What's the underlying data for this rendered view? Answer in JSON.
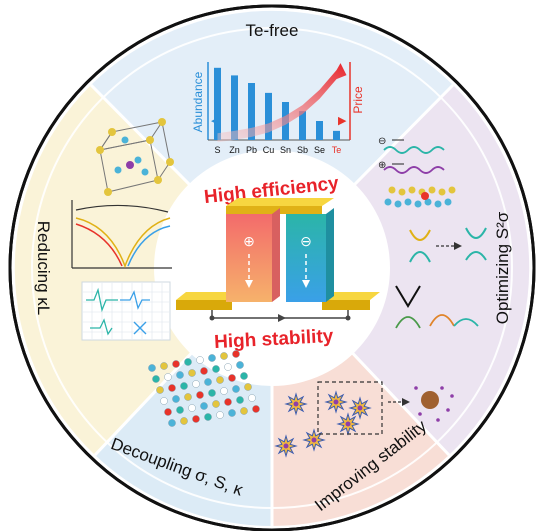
{
  "segments": {
    "top": "Te-free",
    "right": "Optimizing S²σ",
    "bottom_right": "Improving stability",
    "bottom_left": "Decoupling σ, S, κ",
    "left": "Reducing κL"
  },
  "center": {
    "top_text": "High efficiency",
    "bottom_text": "High stability",
    "p_leg_symbol": "⊕",
    "n_leg_symbol": "⊖"
  },
  "abundance_chart": {
    "ylabel_left": "Abundance",
    "ylabel_right": "Price",
    "categories": [
      "S",
      "Zn",
      "Pb",
      "Cu",
      "Sn",
      "Sb",
      "Se",
      "Te"
    ],
    "abundance": [
      0.95,
      0.85,
      0.75,
      0.62,
      0.5,
      0.38,
      0.25,
      0.12
    ],
    "price_trend": [
      0.05,
      0.08,
      0.12,
      0.18,
      0.28,
      0.42,
      0.62,
      0.88
    ],
    "colors": {
      "bar": "#2a8fd8",
      "price": "#e8332a",
      "te_label": "#e8332a"
    }
  },
  "colors": {
    "te_free": "#e3eef8",
    "optimizing": "#ece4f1",
    "improving": "#f8ded6",
    "decoupling": "#dcebf6",
    "reducing": "#faf3d8",
    "ring_border": "#111111",
    "accent_red": "#e8232a"
  }
}
